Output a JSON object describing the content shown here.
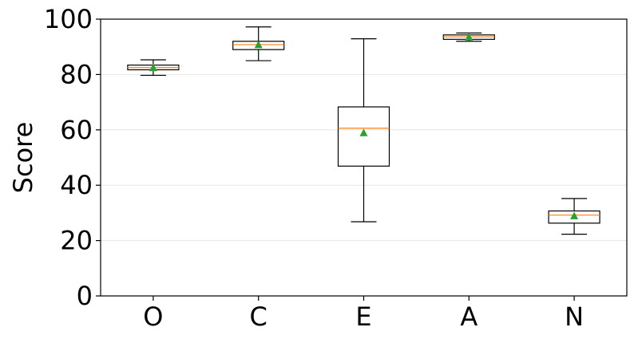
{
  "chart_data": {
    "type": "box",
    "title": "",
    "xlabel": "",
    "ylabel": "Score",
    "ylim": [
      0,
      100
    ],
    "yticks": [
      0,
      20,
      40,
      60,
      80,
      100
    ],
    "categories": [
      "O",
      "C",
      "E",
      "A",
      "N"
    ],
    "grid": "horizontal",
    "boxes": [
      {
        "category": "O",
        "whisker_low": 79.7,
        "q1": 81.7,
        "median": 82.5,
        "q3": 83.4,
        "whisker_high": 85.3,
        "mean": 82.5
      },
      {
        "category": "C",
        "whisker_low": 85.0,
        "q1": 89.0,
        "median": 90.8,
        "q3": 92.0,
        "whisker_high": 97.2,
        "mean": 90.8
      },
      {
        "category": "E",
        "whisker_low": 26.8,
        "q1": 46.9,
        "median": 60.6,
        "q3": 68.3,
        "whisker_high": 92.9,
        "mean": 59.0
      },
      {
        "category": "A",
        "whisker_low": 92.0,
        "q1": 92.7,
        "median": 93.6,
        "q3": 94.3,
        "whisker_high": 95.0,
        "mean": 93.6
      },
      {
        "category": "N",
        "whisker_low": 22.3,
        "q1": 26.3,
        "median": 29.2,
        "q3": 30.7,
        "whisker_high": 35.2,
        "mean": 29.0
      }
    ],
    "colors": {
      "box": "#000000",
      "median": "#ff7f0e",
      "mean": "#2ca02c",
      "grid": "#e6e6e6"
    }
  }
}
